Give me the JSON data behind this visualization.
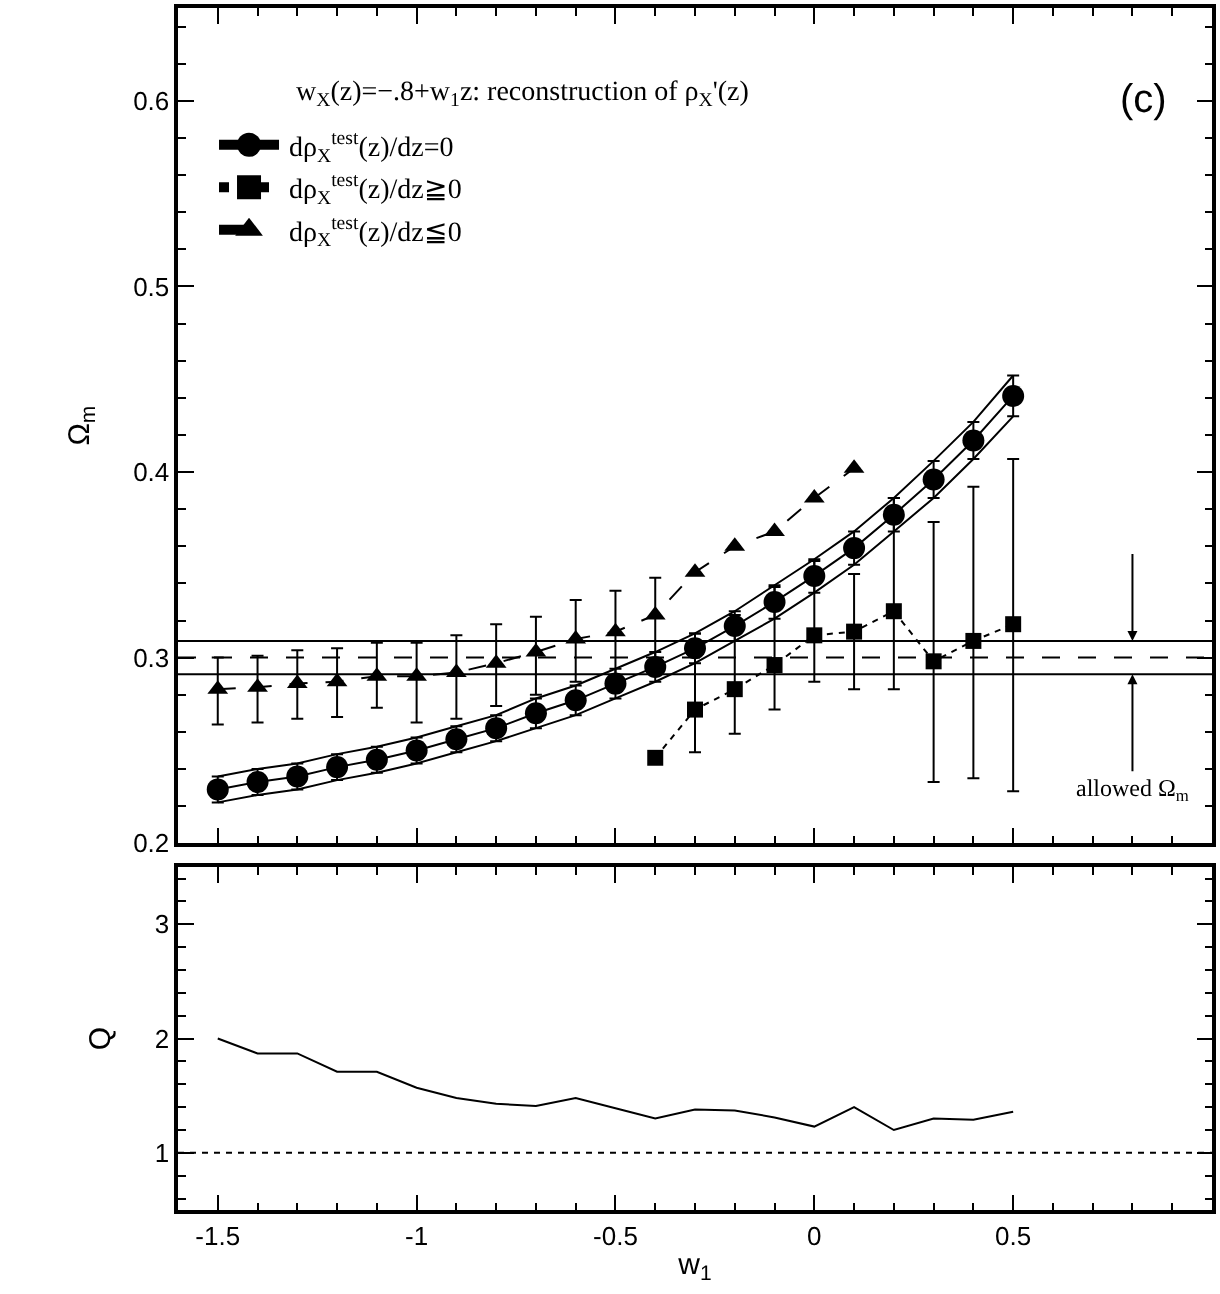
{
  "chart_data": [
    {
      "type": "line",
      "title": "w$_{X}$(z)=−.8+w$_{1}$z: reconstruction of ρ$_{X}$'(z)",
      "ylabel": "Ω$_{m}$",
      "xlim": [
        -1.6,
        1.0
      ],
      "xticks": [
        -1.5,
        -1,
        -0.5,
        0,
        0.5
      ],
      "ylim": [
        0.2,
        0.65
      ],
      "yticks": [
        0.2,
        0.3,
        0.4,
        0.5,
        0.6
      ],
      "tick_labels": "y",
      "legend": "top left",
      "series": [
        {
          "name": "dρ$_{X}$$^{test}$(z)/dz=0",
          "color": "#000000",
          "marker": "circle",
          "line_style": "solid",
          "x": [
            -1.5,
            -1.4,
            -1.3,
            -1.2,
            -1.1,
            -1.0,
            -0.9,
            -0.8,
            -0.7,
            -0.6,
            -0.5,
            -0.4,
            -0.3,
            -0.2,
            -0.1,
            0.0,
            0.1,
            0.2,
            0.3,
            0.4,
            0.5
          ],
          "values": [
            0.229,
            0.233,
            0.236,
            0.241,
            0.245,
            0.25,
            0.256,
            0.262,
            0.27,
            0.277,
            0.286,
            0.295,
            0.305,
            0.317,
            0.33,
            0.344,
            0.359,
            0.377,
            0.396,
            0.417,
            0.441
          ],
          "errors": [
            [
              0.222,
              0.236
            ],
            [
              0.226,
              0.24
            ],
            [
              0.229,
              0.243
            ],
            [
              0.234,
              0.248
            ],
            [
              0.238,
              0.252
            ],
            [
              0.243,
              0.257
            ],
            [
              0.249,
              0.263
            ],
            [
              0.255,
              0.269
            ],
            [
              0.262,
              0.278
            ],
            [
              0.269,
              0.285
            ],
            [
              0.278,
              0.294
            ],
            [
              0.287,
              0.303
            ],
            [
              0.297,
              0.313
            ],
            [
              0.309,
              0.325
            ],
            [
              0.321,
              0.339
            ],
            [
              0.335,
              0.353
            ],
            [
              0.35,
              0.368
            ],
            [
              0.368,
              0.386
            ],
            [
              0.386,
              0.406
            ],
            [
              0.407,
              0.427
            ],
            [
              0.43,
              0.452
            ]
          ]
        },
        {
          "color": "#000000",
          "marker": "none",
          "line_style": "solid",
          "x": [
            -1.5,
            -1.4,
            -1.3,
            -1.2,
            -1.1,
            -1.0,
            -0.9,
            -0.8,
            -0.7,
            -0.6,
            -0.5,
            -0.4,
            -0.3,
            -0.2,
            -0.1,
            0.0,
            0.1,
            0.2,
            0.3,
            0.4,
            0.5
          ],
          "values": [
            0.222,
            0.226,
            0.229,
            0.234,
            0.238,
            0.243,
            0.249,
            0.255,
            0.262,
            0.269,
            0.278,
            0.287,
            0.297,
            0.309,
            0.321,
            0.335,
            0.35,
            0.368,
            0.386,
            0.407,
            0.43
          ]
        },
        {
          "color": "#000000",
          "marker": "none",
          "line_style": "solid",
          "x": [
            -1.5,
            -1.4,
            -1.3,
            -1.2,
            -1.1,
            -1.0,
            -0.9,
            -0.8,
            -0.7,
            -0.6,
            -0.5,
            -0.4,
            -0.3,
            -0.2,
            -0.1,
            0.0,
            0.1,
            0.2,
            0.3,
            0.4,
            0.5
          ],
          "values": [
            0.236,
            0.24,
            0.243,
            0.248,
            0.252,
            0.257,
            0.263,
            0.269,
            0.278,
            0.285,
            0.294,
            0.303,
            0.313,
            0.325,
            0.339,
            0.353,
            0.368,
            0.386,
            0.406,
            0.427,
            0.452
          ]
        },
        {
          "name": "dρ$_{X}$$^{test}$(z)/dz≧0",
          "color": "#000000",
          "marker": "square",
          "line_style": "dotted",
          "x": [
            -0.4,
            -0.3,
            -0.2,
            -0.1,
            0.0,
            0.1,
            0.2,
            0.3,
            0.4,
            0.5
          ],
          "values": [
            0.246,
            0.272,
            0.283,
            0.296,
            0.312,
            0.314,
            0.325,
            0.298,
            0.309,
            0.318
          ],
          "errors": [
            null,
            [
              0.249,
              0.313
            ],
            [
              0.259,
              0.323
            ],
            [
              0.272,
              0.338
            ],
            [
              0.287,
              0.352
            ],
            [
              0.283,
              0.345
            ],
            [
              0.283,
              0.386
            ],
            [
              0.233,
              0.373
            ],
            [
              0.235,
              0.392
            ],
            [
              0.228,
              0.407
            ]
          ]
        },
        {
          "name": "dρ$_{X}$$^{test}$(z)/dz≦0",
          "color": "#000000",
          "marker": "triangle",
          "line_style": "dashed",
          "x": [
            -1.5,
            -1.4,
            -1.3,
            -1.2,
            -1.1,
            -1.0,
            -0.9,
            -0.8,
            -0.7,
            -0.6,
            -0.5,
            -0.4,
            -0.3,
            -0.2,
            -0.1,
            0.0,
            0.1
          ],
          "values": [
            0.283,
            0.284,
            0.286,
            0.287,
            0.29,
            0.29,
            0.292,
            0.297,
            0.303,
            0.31,
            0.314,
            0.323,
            0.346,
            0.36,
            0.368,
            0.386,
            0.402
          ],
          "errors": [
            [
              0.264,
              0.3
            ],
            [
              0.265,
              0.301
            ],
            [
              0.267,
              0.304
            ],
            [
              0.268,
              0.305
            ],
            [
              0.273,
              0.308
            ],
            [
              0.265,
              0.308
            ],
            [
              0.267,
              0.312
            ],
            [
              0.274,
              0.318
            ],
            [
              0.28,
              0.322
            ],
            [
              0.287,
              0.331
            ],
            [
              0.288,
              0.336
            ],
            [
              0.299,
              0.343
            ],
            null,
            null,
            null,
            null,
            null
          ]
        }
      ],
      "ref_lines": [
        {
          "axis": "y",
          "value": 0.309,
          "line_style": "solid",
          "color": "#000000"
        },
        {
          "axis": "y",
          "value": 0.3,
          "line_style": "dashed",
          "color": "#000000"
        },
        {
          "axis": "y",
          "value": 0.291,
          "line_style": "solid",
          "color": "#000000"
        }
      ],
      "annotations": [
        "(c)",
        {
          "text": "allowed Ω$_{m}$",
          "x": 0.8,
          "y": 0.291
        }
      ]
    },
    {
      "type": "line",
      "xlabel": "w$_{1}$",
      "ylabel": "Q",
      "xlim": [
        -1.6,
        1.0
      ],
      "xticks": [
        -1.5,
        -1,
        -0.5,
        0,
        0.5
      ],
      "ylim": [
        0.5,
        3.5
      ],
      "yticks": [
        1,
        2,
        3
      ],
      "legend": false,
      "series": [
        {
          "color": "#000000",
          "marker": "none",
          "line_style": "solid",
          "x": [
            -1.5,
            -1.4,
            -1.3,
            -1.2,
            -1.1,
            -1.0,
            -0.9,
            -0.8,
            -0.7,
            -0.6,
            -0.5,
            -0.4,
            -0.3,
            -0.2,
            -0.1,
            0.0,
            0.1,
            0.2,
            0.3,
            0.4,
            0.5
          ],
          "values": [
            2.0,
            1.87,
            1.87,
            1.71,
            1.71,
            1.57,
            1.48,
            1.43,
            1.41,
            1.48,
            1.39,
            1.3,
            1.38,
            1.37,
            1.31,
            1.23,
            1.4,
            1.2,
            1.3,
            1.29,
            1.36
          ]
        }
      ],
      "ref_lines": [
        {
          "axis": "y",
          "value": 1,
          "line_style": "dotted",
          "color": "#000000"
        }
      ]
    }
  ]
}
